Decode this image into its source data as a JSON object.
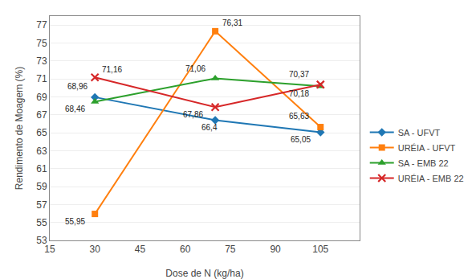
{
  "chart_data": {
    "type": "line",
    "x": [
      30,
      70,
      105
    ],
    "series": [
      {
        "name": "SA - UFVT",
        "marker": "diamond",
        "values": [
          68.96,
          66.4,
          65.05
        ],
        "value_labels": [
          "68,96",
          "66,4",
          "65,05"
        ]
      },
      {
        "name": "URÉIA - UFVT",
        "marker": "square",
        "values": [
          55.95,
          76.31,
          65.63
        ],
        "value_labels": [
          "55,95",
          "76,31",
          "65,63"
        ]
      },
      {
        "name": "SA - EMB 22",
        "marker": "triangle",
        "values": [
          68.46,
          71.06,
          70.18
        ],
        "value_labels": [
          "68,46",
          "71,06",
          "70,18"
        ]
      },
      {
        "name": "URÉIA - EMB 22",
        "marker": "x",
        "values": [
          71.16,
          67.86,
          70.37
        ],
        "value_labels": [
          "71,16",
          "67,86",
          "70,37"
        ]
      }
    ],
    "data_labels": true,
    "xlabel": "Dose de N (kg/ha)",
    "ylabel": "Rendimento de Moagem (%)",
    "xlim": [
      15,
      118
    ],
    "ylim": [
      53,
      78
    ],
    "xticks": [
      15,
      30,
      45,
      60,
      75,
      90,
      105
    ],
    "yticks": [
      53,
      55,
      57,
      59,
      61,
      63,
      65,
      67,
      69,
      71,
      73,
      75,
      77
    ],
    "grid": "y",
    "legend": "right"
  }
}
